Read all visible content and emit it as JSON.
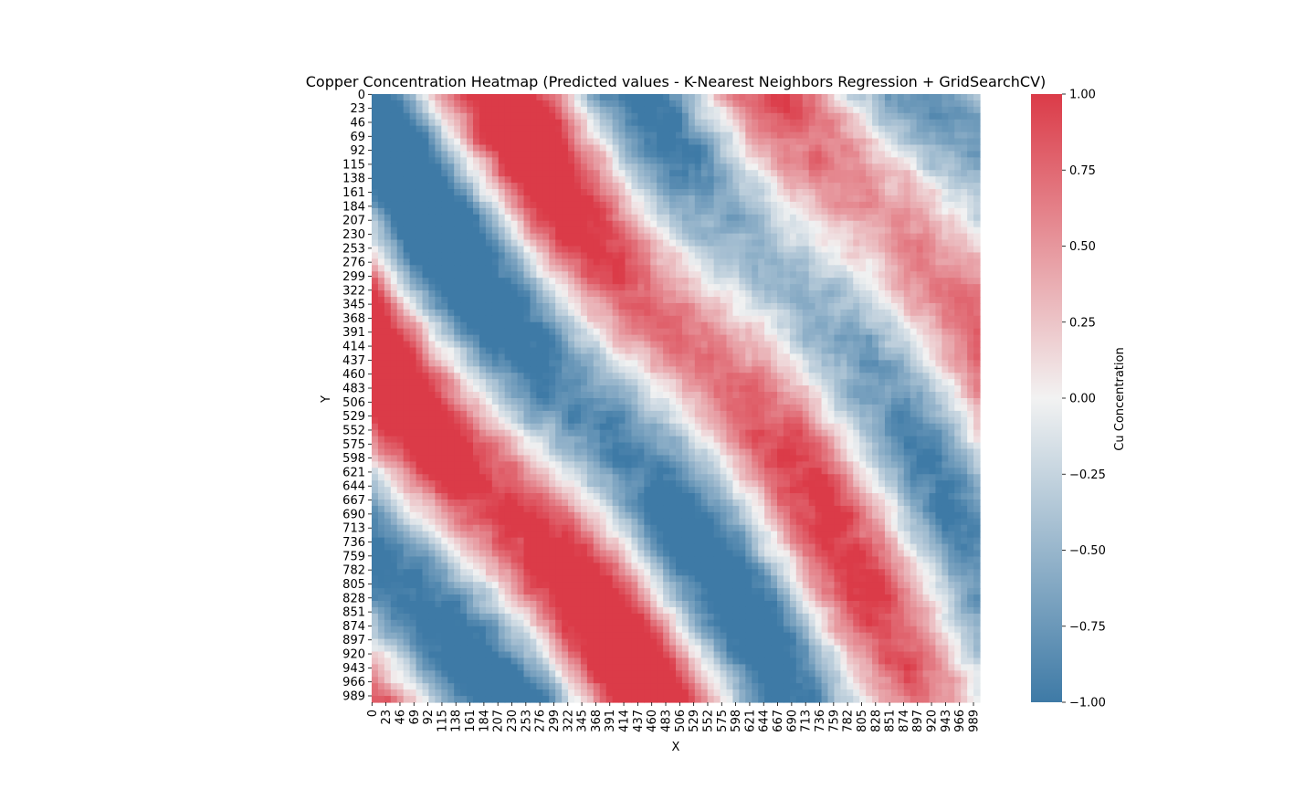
{
  "chart_data": {
    "type": "heatmap",
    "title": "Copper Concentration Heatmap (Predicted values - K-Nearest Neighbors Regression + GridSearchCV)",
    "xlabel": "X",
    "ylabel": "Y",
    "x_ticks": [
      "0",
      "23",
      "46",
      "69",
      "92",
      "115",
      "138",
      "161",
      "184",
      "207",
      "230",
      "253",
      "276",
      "299",
      "322",
      "345",
      "368",
      "391",
      "414",
      "437",
      "460",
      "483",
      "506",
      "529",
      "552",
      "575",
      "598",
      "621",
      "644",
      "667",
      "690",
      "713",
      "736",
      "759",
      "782",
      "805",
      "828",
      "851",
      "874",
      "897",
      "920",
      "943",
      "966",
      "989"
    ],
    "y_ticks": [
      "0",
      "23",
      "46",
      "69",
      "92",
      "115",
      "138",
      "161",
      "184",
      "207",
      "230",
      "253",
      "276",
      "299",
      "322",
      "345",
      "368",
      "391",
      "414",
      "437",
      "460",
      "483",
      "506",
      "529",
      "552",
      "575",
      "598",
      "621",
      "644",
      "667",
      "690",
      "713",
      "736",
      "759",
      "782",
      "805",
      "828",
      "851",
      "874",
      "897",
      "920",
      "943",
      "966",
      "989"
    ],
    "grid_extent": [
      0,
      1000
    ],
    "colorbar": {
      "label": "Cu Concentration",
      "range": [
        -1.0,
        1.0
      ],
      "ticks": [
        "1.00",
        "0.75",
        "0.50",
        "0.25",
        "0.00",
        "−0.25",
        "−0.50",
        "−0.75",
        "−1.00"
      ],
      "low_color": "#3e7aa6",
      "mid_color": "#f2f2f2",
      "high_color": "#db3b48"
    },
    "pattern": "noisy diagonal bands running from upper-left to lower-right, values between -1 and 1"
  }
}
